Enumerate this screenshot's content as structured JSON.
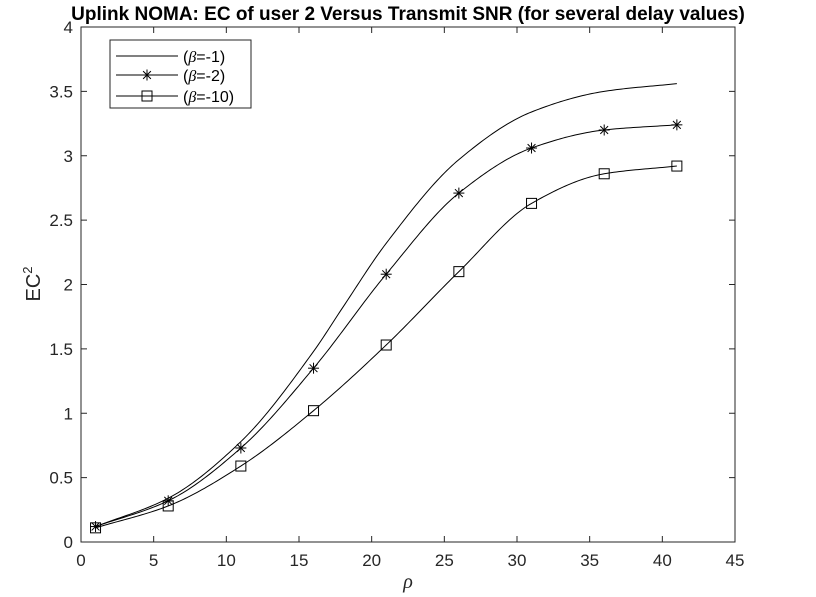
{
  "chart_data": {
    "type": "line",
    "title": "Uplink NOMA: EC of user 2 Versus Transmit SNR (for several delay values)",
    "xlabel": "ρ",
    "ylabel_base": "EC",
    "ylabel_sup": "2",
    "xlim": [
      0,
      45
    ],
    "ylim": [
      0,
      4
    ],
    "xticks": [
      0,
      5,
      10,
      15,
      20,
      25,
      30,
      35,
      40,
      45
    ],
    "yticks": [
      0,
      0.5,
      1,
      1.5,
      2,
      2.5,
      3,
      3.5,
      4
    ],
    "xtick_labels": [
      "0",
      "5",
      "10",
      "15",
      "20",
      "25",
      "30",
      "35",
      "40",
      "45"
    ],
    "ytick_labels": [
      "0",
      "0.5",
      "1",
      "1.5",
      "2",
      "2.5",
      "3",
      "3.5",
      "4"
    ],
    "grid": false,
    "legend_position": "top-left",
    "x": [
      1,
      6,
      11,
      16,
      21,
      26,
      31,
      36,
      41
    ],
    "series": [
      {
        "name": "(β=-1)",
        "beta": "-1",
        "marker": "none",
        "x": [
          1,
          6,
          11,
          16,
          18,
          21,
          26,
          31,
          36,
          41
        ],
        "values": [
          0.12,
          0.34,
          0.78,
          1.48,
          1.82,
          2.32,
          2.97,
          3.34,
          3.5,
          3.56
        ]
      },
      {
        "name": "(β=-2)",
        "beta": "-2",
        "marker": "asterisk",
        "x": [
          1,
          6,
          11,
          16,
          21,
          26,
          31,
          36,
          41
        ],
        "values": [
          0.12,
          0.32,
          0.73,
          1.35,
          2.08,
          2.71,
          3.06,
          3.2,
          3.24
        ]
      },
      {
        "name": "(β=-10)",
        "beta": "-10",
        "marker": "square",
        "x": [
          1,
          6,
          11,
          16,
          21,
          26,
          31,
          36,
          41
        ],
        "values": [
          0.11,
          0.28,
          0.59,
          1.02,
          1.53,
          2.1,
          2.63,
          2.86,
          2.92
        ]
      }
    ]
  }
}
